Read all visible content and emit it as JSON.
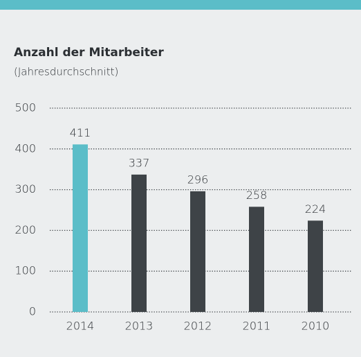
{
  "chart_data": {
    "type": "bar",
    "title": "Anzahl der Mitarbeiter",
    "subtitle": "(Jahresdurchschnitt)",
    "categories": [
      "2014",
      "2013",
      "2012",
      "2011",
      "2010"
    ],
    "values": [
      411,
      337,
      296,
      258,
      224
    ],
    "colors": [
      "#5bbdc8",
      "#3e4347",
      "#3e4347",
      "#3e4347",
      "#3e4347"
    ],
    "ylim": [
      0,
      500
    ],
    "yticks": [
      0,
      100,
      200,
      300,
      400,
      500
    ],
    "grid": true
  }
}
